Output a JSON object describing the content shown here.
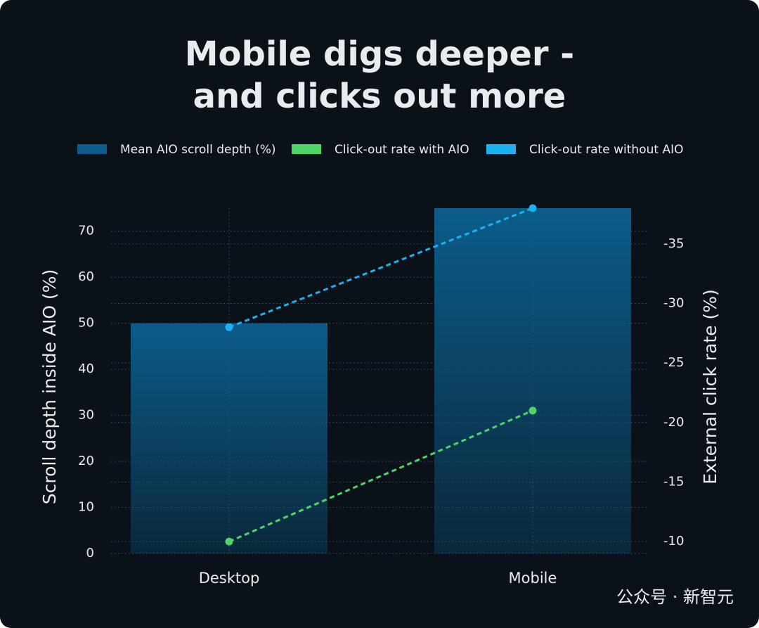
{
  "chart_data": {
    "type": "bar",
    "title": [
      "Mobile digs deeper -",
      "and clicks out more"
    ],
    "categories": [
      "Desktop",
      "Mobile"
    ],
    "series": [
      {
        "name": "Mean AIO scroll depth (%)",
        "color": "#0b5c8a",
        "type": "bar",
        "values": [
          50,
          75
        ]
      },
      {
        "name": "Click-out rate with AIO",
        "color": "#4fd466",
        "type": "line",
        "axis": "y2",
        "values": [
          -10,
          -21
        ]
      },
      {
        "name": "Click-out rate without AIO",
        "color": "#1ab2f0",
        "type": "line",
        "axis": "y2",
        "values": [
          -28,
          -38
        ]
      }
    ],
    "ylabel": "Scroll depth inside AIO (%)",
    "y2label": "External click rate (%)",
    "ylim": [
      0,
      75
    ],
    "yticks": [
      0,
      10,
      20,
      30,
      40,
      50,
      60,
      70
    ],
    "y2lim": [
      -9,
      -38
    ],
    "y2ticks": [
      -35,
      -30,
      -25,
      -20,
      -15,
      -10
    ],
    "grid": true,
    "watermark": "公众号 · 新智元"
  }
}
